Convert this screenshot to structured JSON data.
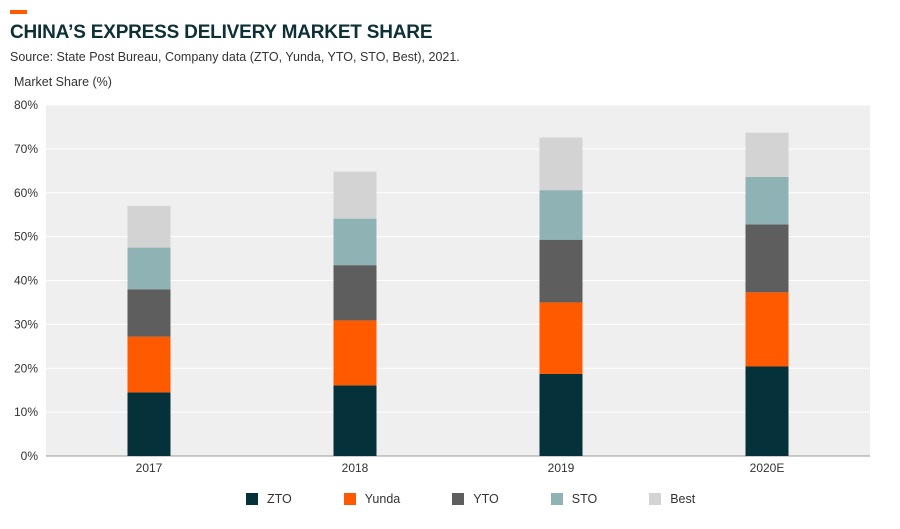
{
  "header": {
    "title": "CHINA’S EXPRESS DELIVERY MARKET SHARE",
    "subtitle": "Source: State Post Bureau, Company data (ZTO, Yunda, YTO, STO, Best), 2021.",
    "accent_color": "#ff5a00"
  },
  "chart_data": {
    "type": "bar",
    "stacked": true,
    "ylabel": "Market Share (%)",
    "ylim": [
      0,
      80
    ],
    "yticks": [
      0,
      10,
      20,
      30,
      40,
      50,
      60,
      70,
      80
    ],
    "ytick_suffix": "%",
    "grid": true,
    "legend_position": "bottom",
    "categories": [
      "2017",
      "2018",
      "2019",
      "2020E"
    ],
    "series": [
      {
        "name": "ZTO",
        "color": "#04313a",
        "values": [
          14.5,
          16.1,
          18.7,
          20.4
        ]
      },
      {
        "name": "Yunda",
        "color": "#ff5a00",
        "values": [
          12.7,
          14.8,
          16.3,
          16.9
        ]
      },
      {
        "name": "YTO",
        "color": "#5e5e5e",
        "values": [
          10.8,
          12.6,
          14.3,
          15.5
        ]
      },
      {
        "name": "STO",
        "color": "#8fb3b4",
        "values": [
          9.5,
          10.6,
          11.3,
          10.8
        ]
      },
      {
        "name": "Best",
        "color": "#d3d3d3",
        "values": [
          9.5,
          10.7,
          12.0,
          10.1
        ]
      }
    ],
    "plot_background": "#efefef",
    "grid_color": "#ffffff"
  }
}
